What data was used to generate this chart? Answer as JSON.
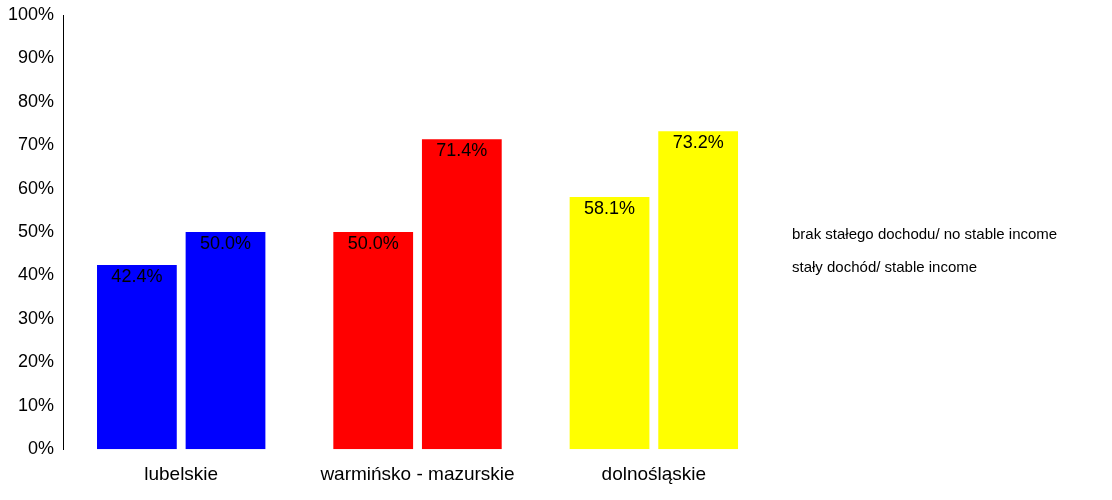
{
  "chart_data": {
    "type": "bar",
    "categories": [
      "lubelskie",
      "warmińsko - mazurskie",
      "dolnośląskie"
    ],
    "series": [
      {
        "name": "stały dochód/ stable income",
        "colors": [
          "#0000ff",
          "#ff0000",
          "#ffff00"
        ],
        "values": [
          42.4,
          50.0,
          58.1
        ],
        "value_labels": [
          "42.4%",
          "50.0%",
          "58.1%"
        ]
      },
      {
        "name": "brak stałego dochodu/ no stable income",
        "colors": [
          "#0000ff",
          "#ff0000",
          "#ffff00"
        ],
        "values": [
          50.0,
          71.4,
          73.2
        ],
        "value_labels": [
          "50.0%",
          "71.4%",
          "73.2%"
        ]
      }
    ],
    "ylim": [
      0,
      100
    ],
    "yticks": [
      {
        "value": 0,
        "label": "0%"
      },
      {
        "value": 10,
        "label": "10%"
      },
      {
        "value": 20,
        "label": "20%"
      },
      {
        "value": 30,
        "label": "30%"
      },
      {
        "value": 40,
        "label": "40%"
      },
      {
        "value": 50,
        "label": "50%"
      },
      {
        "value": 60,
        "label": "60%"
      },
      {
        "value": 70,
        "label": "70%"
      },
      {
        "value": 80,
        "label": "80%"
      },
      {
        "value": 90,
        "label": "90%"
      },
      {
        "value": 100,
        "label": "100%"
      }
    ],
    "grid": false,
    "legend": "right"
  }
}
